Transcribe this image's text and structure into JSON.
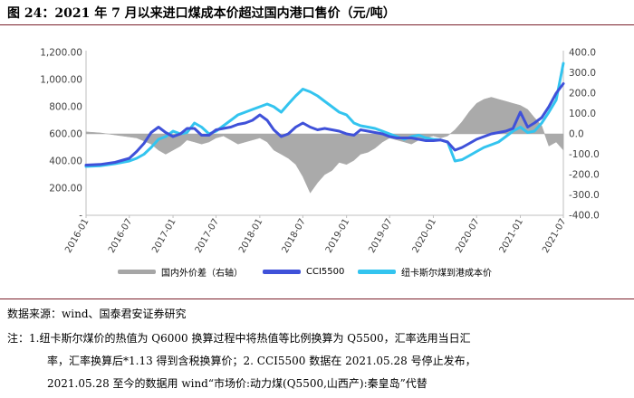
{
  "title": "图 24：2021 年 7 月以来进口煤成本价超过国内港口售价（元/吨）",
  "source": "数据来源：wind、国泰君安证券研究",
  "notes": [
    "注：1.纽卡斯尔煤价的热值为 Q6000 换算过程中将热值等比例换算为 Q5500，汇率选用当日汇",
    "率，汇率换算后*1.13 得到含税换算价；2. CCI5500 数据在 2021.05.28 号停止发布，",
    "2021.05.28 至今的数据用 wind“市场价:动力煤(Q5500,山西产):秦皇岛”代替"
  ],
  "colors": {
    "spread": "#a6a6a6",
    "cci": "#3f51d9",
    "newcastle": "#33c4ef",
    "rule": "#7a1f2b"
  },
  "chart_data": {
    "type": "line",
    "x_ticks": [
      "2016-01",
      "2016-07",
      "2017-01",
      "2017-07",
      "2018-01",
      "2018-07",
      "2019-01",
      "2019-07",
      "2020-01",
      "2020-07",
      "2021-01",
      "2021-07"
    ],
    "y_left": {
      "ticks": [
        "-",
        "200.00",
        "400.00",
        "600.00",
        "800.00",
        "1,000.00",
        "1,200.00"
      ],
      "ylim": [
        0,
        1200
      ]
    },
    "y_right": {
      "ticks": [
        "-400.0",
        "-300.0",
        "-200.0",
        "-100.0",
        "0.0",
        "100.0",
        "200.0",
        "300.0",
        "400.0"
      ],
      "ylim": [
        -400,
        400
      ]
    },
    "legend": {
      "placement": "bottom"
    },
    "series": [
      {
        "name": "国内外价差（右轴）",
        "type": "area",
        "axis": "right",
        "x": [
          "2016-01",
          "2016-03",
          "2016-06",
          "2016-08",
          "2016-10",
          "2016-11",
          "2016-12",
          "2017-01",
          "2017-02",
          "2017-03",
          "2017-04",
          "2017-05",
          "2017-06",
          "2017-07",
          "2017-08",
          "2017-09",
          "2017-10",
          "2017-11",
          "2017-12",
          "2018-01",
          "2018-02",
          "2018-03",
          "2018-04",
          "2018-05",
          "2018-06",
          "2018-07",
          "2018-08",
          "2018-09",
          "2018-10",
          "2018-11",
          "2018-12",
          "2019-01",
          "2019-02",
          "2019-03",
          "2019-04",
          "2019-05",
          "2019-06",
          "2019-07",
          "2019-08",
          "2019-09",
          "2019-10",
          "2019-11",
          "2019-12",
          "2020-01",
          "2020-02",
          "2020-03",
          "2020-04",
          "2020-05",
          "2020-06",
          "2020-07",
          "2020-08",
          "2020-09",
          "2020-10",
          "2020-11",
          "2020-12",
          "2021-01",
          "2021-02",
          "2021-03",
          "2021-04",
          "2021-05",
          "2021-06",
          "2021-07"
        ],
        "values": [
          10,
          5,
          -10,
          -20,
          -50,
          -80,
          -100,
          -80,
          -60,
          -30,
          -40,
          -50,
          -40,
          -20,
          -10,
          -30,
          -50,
          -40,
          -30,
          -20,
          -40,
          -80,
          -100,
          -120,
          -150,
          -210,
          -290,
          -240,
          -200,
          -180,
          -140,
          -150,
          -130,
          -100,
          -90,
          -70,
          -40,
          -20,
          -30,
          -40,
          -50,
          -30,
          -20,
          -10,
          -20,
          -10,
          20,
          60,
          110,
          150,
          170,
          180,
          170,
          160,
          150,
          140,
          120,
          80,
          40,
          -60,
          -40,
          -80
        ]
      },
      {
        "name": "CCI5500",
        "type": "line",
        "axis": "left",
        "x": [
          "2016-01",
          "2016-03",
          "2016-05",
          "2016-07",
          "2016-08",
          "2016-09",
          "2016-10",
          "2016-11",
          "2016-12",
          "2017-01",
          "2017-02",
          "2017-03",
          "2017-04",
          "2017-05",
          "2017-06",
          "2017-07",
          "2017-08",
          "2017-09",
          "2017-10",
          "2017-11",
          "2017-12",
          "2018-01",
          "2018-02",
          "2018-03",
          "2018-04",
          "2018-05",
          "2018-06",
          "2018-07",
          "2018-08",
          "2018-09",
          "2018-10",
          "2018-11",
          "2018-12",
          "2019-01",
          "2019-02",
          "2019-03",
          "2019-04",
          "2019-05",
          "2019-06",
          "2019-07",
          "2019-08",
          "2019-09",
          "2019-10",
          "2019-11",
          "2019-12",
          "2020-01",
          "2020-02",
          "2020-03",
          "2020-04",
          "2020-05",
          "2020-06",
          "2020-07",
          "2020-08",
          "2020-09",
          "2020-10",
          "2020-11",
          "2020-12",
          "2021-01",
          "2021-02",
          "2021-03",
          "2021-04",
          "2021-05",
          "2021-06",
          "2021-07"
        ],
        "values": [
          370,
          375,
          390,
          420,
          470,
          530,
          610,
          650,
          610,
          580,
          600,
          640,
          640,
          590,
          590,
          630,
          640,
          650,
          670,
          680,
          700,
          740,
          700,
          630,
          580,
          600,
          650,
          680,
          650,
          630,
          640,
          630,
          620,
          600,
          590,
          630,
          620,
          610,
          600,
          580,
          570,
          570,
          570,
          560,
          550,
          550,
          555,
          540,
          480,
          500,
          530,
          560,
          580,
          600,
          610,
          620,
          640,
          760,
          650,
          680,
          720,
          800,
          900,
          970
        ]
      },
      {
        "name": "纽卡斯尔煤到港成本价",
        "type": "line",
        "axis": "left",
        "x": [
          "2016-01",
          "2016-03",
          "2016-05",
          "2016-07",
          "2016-08",
          "2016-09",
          "2016-10",
          "2016-11",
          "2016-12",
          "2017-01",
          "2017-02",
          "2017-03",
          "2017-04",
          "2017-05",
          "2017-06",
          "2017-07",
          "2017-08",
          "2017-09",
          "2017-10",
          "2017-11",
          "2017-12",
          "2018-01",
          "2018-02",
          "2018-03",
          "2018-04",
          "2018-05",
          "2018-06",
          "2018-07",
          "2018-08",
          "2018-09",
          "2018-10",
          "2018-11",
          "2018-12",
          "2019-01",
          "2019-02",
          "2019-03",
          "2019-04",
          "2019-05",
          "2019-06",
          "2019-07",
          "2019-08",
          "2019-09",
          "2019-10",
          "2019-11",
          "2019-12",
          "2020-01",
          "2020-02",
          "2020-03",
          "2020-04",
          "2020-05",
          "2020-06",
          "2020-07",
          "2020-08",
          "2020-09",
          "2020-10",
          "2020-11",
          "2020-12",
          "2021-01",
          "2021-02",
          "2021-03",
          "2021-04",
          "2021-05",
          "2021-06",
          "2021-07"
        ],
        "values": [
          360,
          365,
          380,
          400,
          420,
          450,
          500,
          560,
          580,
          620,
          600,
          610,
          680,
          650,
          600,
          620,
          660,
          700,
          740,
          760,
          780,
          800,
          820,
          800,
          760,
          820,
          880,
          930,
          910,
          880,
          840,
          800,
          760,
          740,
          680,
          660,
          650,
          640,
          620,
          600,
          580,
          560,
          580,
          590,
          570,
          560,
          555,
          540,
          400,
          410,
          440,
          470,
          500,
          520,
          540,
          580,
          620,
          650,
          610,
          620,
          680,
          760,
          850,
          1120
        ]
      }
    ]
  }
}
